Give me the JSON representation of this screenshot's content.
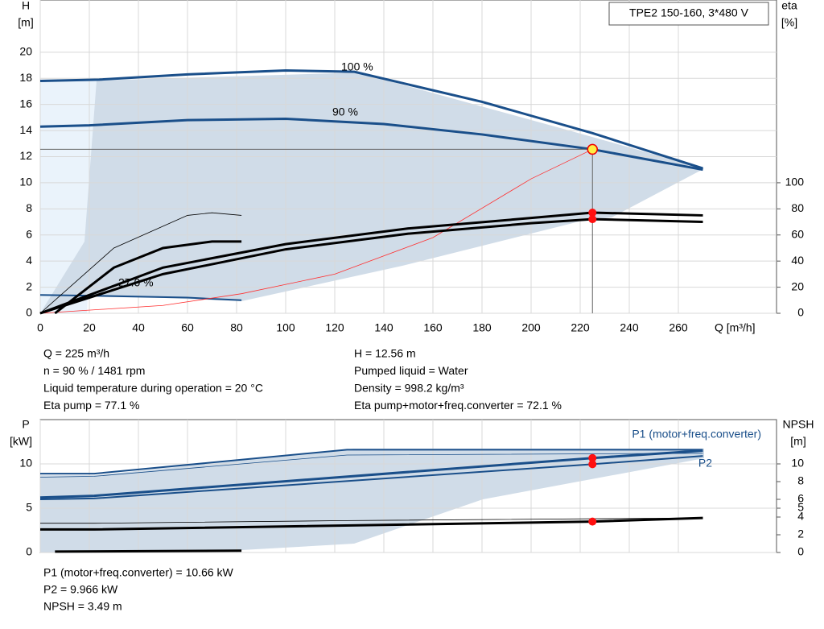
{
  "title_box": "TPE2 150-160, 3*480 V",
  "chart_data": [
    {
      "type": "line",
      "y_label": "H",
      "y_unit": "[m]",
      "y2_label": "eta",
      "y2_unit": "[%]",
      "x_label": "Q [m³/h]",
      "xlim": [
        0,
        300
      ],
      "xticks": [
        0,
        20,
        40,
        60,
        80,
        100,
        120,
        140,
        160,
        180,
        200,
        220,
        240,
        260
      ],
      "ylim": [
        0,
        24
      ],
      "yticks": [
        0,
        2,
        4,
        6,
        8,
        10,
        12,
        14,
        16,
        18,
        20
      ],
      "y2lim": [
        0,
        240
      ],
      "y2ticks": [
        0,
        20,
        40,
        60,
        80,
        100
      ],
      "grid": true,
      "annotations": [
        "100 %",
        "90 %",
        "27.0 %"
      ],
      "series": [
        {
          "color": "#1a4f8a",
          "weight": "bold",
          "x": [
            0,
            24,
            60,
            100,
            128,
            180,
            225,
            270
          ],
          "values": [
            17.8,
            17.9,
            18.3,
            18.6,
            18.5,
            16.2,
            13.8,
            11.1
          ]
        },
        {
          "color": "#1a4f8a",
          "weight": "bold",
          "x": [
            0,
            20,
            60,
            100,
            140,
            180,
            225,
            270
          ],
          "values": [
            14.3,
            14.4,
            14.8,
            14.9,
            14.5,
            13.7,
            12.56,
            11.0
          ]
        },
        {
          "color": "#1a4f8a",
          "weight": "normal",
          "x": [
            0,
            20,
            60,
            82
          ],
          "values": [
            1.4,
            1.35,
            1.2,
            1.0
          ]
        },
        {
          "color": "#ff3030",
          "weight": "thin",
          "x": [
            0,
            50,
            82,
            120,
            160,
            200,
            225
          ],
          "values": [
            0,
            0.6,
            1.5,
            3.0,
            5.8,
            10.3,
            12.56
          ]
        },
        {
          "color": "#000000",
          "weight": "bold",
          "axis": "y2",
          "x": [
            0,
            50,
            100,
            150,
            200,
            225,
            270
          ],
          "values": [
            0,
            35,
            53,
            65,
            73,
            77.1,
            75
          ]
        },
        {
          "color": "#000000",
          "weight": "bold",
          "axis": "y2",
          "x": [
            0,
            50,
            100,
            150,
            200,
            225,
            270
          ],
          "values": [
            0,
            30,
            49,
            61,
            69,
            72.1,
            70
          ]
        },
        {
          "color": "#000000",
          "weight": "bold",
          "axis": "y2",
          "x": [
            6,
            30,
            50,
            70,
            82
          ],
          "values": [
            0,
            35,
            50,
            55,
            55
          ]
        },
        {
          "color": "#000000",
          "weight": "thin",
          "axis": "y2",
          "x": [
            0,
            30,
            60,
            70,
            82
          ],
          "values": [
            0,
            50,
            75,
            77,
            75
          ]
        }
      ],
      "duty_point": {
        "x": 225,
        "y": 12.56,
        "eta": [
          77.1,
          72.1
        ]
      },
      "info": [
        "Q = 225 m³/h",
        "n = 90 % / 1481 rpm",
        "Liquid temperature during operation = 20 °C",
        "Eta pump = 77.1 %",
        "H = 12.56 m",
        "Pumped liquid = Water",
        "Density = 998.2 kg/m³",
        "Eta pump+motor+freq.converter = 72.1 %"
      ]
    },
    {
      "type": "line",
      "y_label": "P",
      "y_unit": "[kW]",
      "y2_label": "NPSH",
      "y2_unit": "[m]",
      "xlim": [
        0,
        300
      ],
      "ylim": [
        0,
        15
      ],
      "yticks": [
        0,
        5,
        10
      ],
      "y2lim": [
        0,
        15
      ],
      "y2ticks": [
        0,
        2,
        4,
        5,
        6,
        8,
        10
      ],
      "grid": true,
      "series": [
        {
          "color": "#1a4f8a",
          "weight": "normal",
          "x": [
            0,
            22,
            125,
            270
          ],
          "values": [
            8.9,
            8.9,
            11.6,
            11.6
          ]
        },
        {
          "color": "#1a4f8a",
          "weight": "thin",
          "x": [
            0,
            22,
            125,
            270
          ],
          "values": [
            8.5,
            8.6,
            11.0,
            11.2
          ]
        },
        {
          "name": "P1 (motor+freq.converter)",
          "color": "#1a4f8a",
          "weight": "bold",
          "x": [
            0,
            22,
            225,
            270
          ],
          "values": [
            6.2,
            6.4,
            10.66,
            11.5
          ]
        },
        {
          "name": "P2",
          "color": "#1a4f8a",
          "weight": "normal",
          "x": [
            0,
            22,
            225,
            270
          ],
          "values": [
            6.0,
            6.1,
            9.966,
            10.9
          ]
        },
        {
          "color": "#000000",
          "weight": "thin",
          "axis": "y2",
          "x": [
            0,
            22,
            125,
            270
          ],
          "values": [
            3.3,
            3.3,
            3.6,
            3.9
          ]
        },
        {
          "color": "#000000",
          "weight": "bold",
          "axis": "y2",
          "x": [
            0,
            22,
            225,
            270
          ],
          "values": [
            2.6,
            2.6,
            3.49,
            3.9
          ]
        },
        {
          "color": "#000000",
          "weight": "bold",
          "axis": "y2",
          "x": [
            6,
            82
          ],
          "values": [
            0.1,
            0.2
          ]
        }
      ],
      "duty_point": {
        "x": 225,
        "p": [
          10.66,
          9.966
        ],
        "npsh": 3.49
      },
      "info": [
        "P1 (motor+freq.converter) = 10.66 kW",
        "P2 = 9.966 kW",
        "NPSH = 3.49 m"
      ]
    }
  ]
}
